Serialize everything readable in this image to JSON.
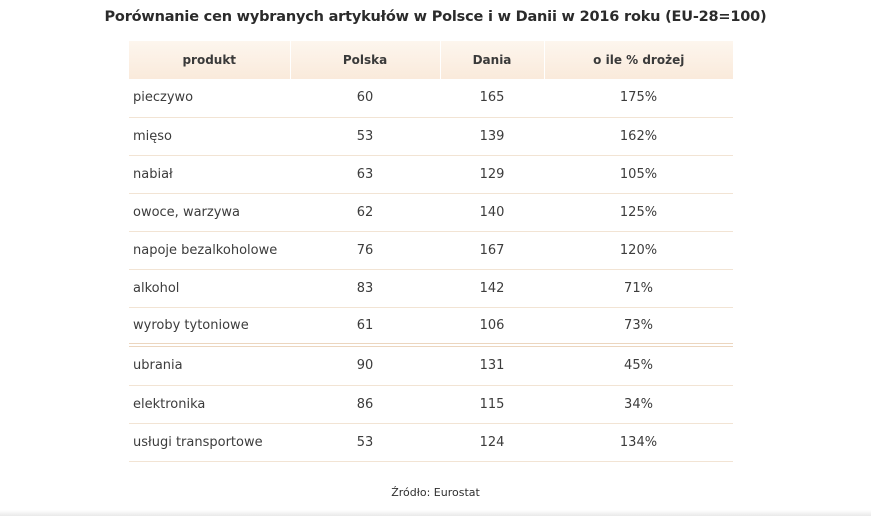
{
  "title": "Porównanie cen wybranych artykułów w Polsce i w Danii w 2016 roku (EU-28=100)",
  "table": {
    "headers": [
      "produkt",
      "Polska",
      "Dania",
      "o ile % drożej"
    ],
    "rows": [
      [
        "pieczywo",
        "60",
        "165",
        "175%"
      ],
      [
        "mięso",
        "53",
        "139",
        "162%"
      ],
      [
        "nabiał",
        "63",
        "129",
        "105%"
      ],
      [
        "owoce, warzywa",
        "62",
        "140",
        "125%"
      ],
      [
        "napoje bezalkoholowe",
        "76",
        "167",
        "120%"
      ],
      [
        "alkohol",
        "83",
        "142",
        "71%"
      ],
      [
        "wyroby tytoniowe",
        "61",
        "106",
        "73%"
      ],
      [
        "ubrania",
        "90",
        "131",
        "45%"
      ],
      [
        "elektronika",
        "86",
        "115",
        "34%"
      ],
      [
        "usługi transportowe",
        "53",
        "124",
        "134%"
      ]
    ]
  },
  "source": "Źródło: Eurostat",
  "colors": {
    "header_bg": "#faeadb",
    "row_divider": "#f2e4d4",
    "group_divider": "#ecd6bf"
  }
}
